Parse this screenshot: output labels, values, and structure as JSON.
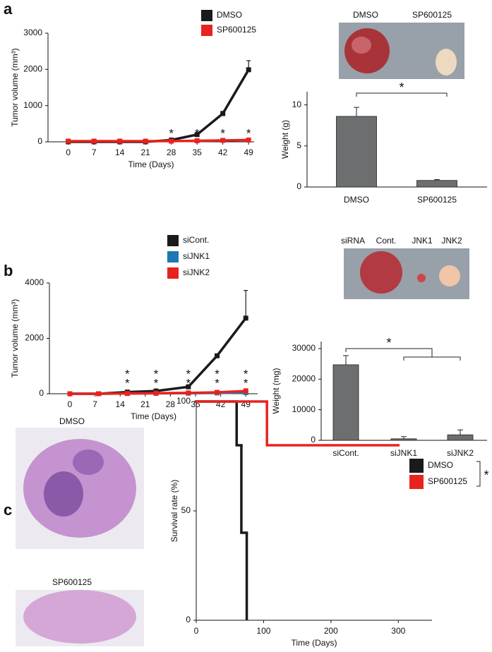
{
  "panel_labels": [
    "a",
    "b",
    "c"
  ],
  "photos": {
    "a": [
      "DMSO",
      "SP600125"
    ],
    "b": [
      "siRNA",
      "Cont.",
      "JNK1",
      "JNK2"
    ],
    "c": [
      "DMSO",
      "SP600125"
    ]
  },
  "chart_data": [
    {
      "type": "line",
      "x_label": "Time (Days)",
      "y_label": "Tumor volume (mm³)",
      "x": [
        0,
        7,
        14,
        21,
        28,
        35,
        42,
        49
      ],
      "xlim": [
        -5.5,
        50.5
      ],
      "xticks": [
        0,
        7,
        14,
        21,
        28,
        35,
        42,
        49
      ],
      "ylim": [
        0,
        3000
      ],
      "yticks": [
        0,
        1000,
        2000,
        3000
      ],
      "series": [
        {
          "name": "DMSO",
          "color": "#1a1a1a",
          "values": [
            0,
            0,
            0,
            0,
            50,
            200,
            780,
            1990
          ],
          "errors": [
            10,
            10,
            10,
            10,
            20,
            50,
            60,
            250
          ]
        },
        {
          "name": "SP600125",
          "color": "#e8231e",
          "values": [
            20,
            20,
            20,
            20,
            20,
            30,
            40,
            50
          ],
          "errors": [
            5,
            5,
            5,
            5,
            5,
            10,
            10,
            10
          ]
        }
      ],
      "annotations": [
        {
          "x": 28,
          "texts": [
            "*"
          ]
        },
        {
          "x": 35,
          "texts": [
            "*"
          ]
        },
        {
          "x": 42,
          "texts": [
            "*"
          ]
        },
        {
          "x": 49,
          "texts": [
            "*"
          ]
        }
      ]
    },
    {
      "type": "bar",
      "y_label": "Weight (g)",
      "categories": [
        "DMSO",
        "SP600125"
      ],
      "values": [
        8.6,
        0.8
      ],
      "errors": [
        1.1,
        0.1
      ],
      "color": "#6d6e70",
      "ylim": [
        0,
        11.6
      ],
      "yticks": [
        0,
        5,
        10
      ],
      "comparison": "*"
    },
    {
      "type": "line",
      "x_label": "Time (Days)",
      "y_label": "Tumor volume (mm³)",
      "x": [
        0,
        8,
        16,
        24,
        33,
        41,
        49
      ],
      "xlim": [
        -5.7,
        52.3
      ],
      "xticks": [
        0,
        7,
        14,
        21,
        28,
        35,
        42,
        49
      ],
      "ylim": [
        0,
        4000
      ],
      "yticks": [
        0,
        2000,
        4000
      ],
      "series": [
        {
          "name": "siCont.",
          "color": "#1a1a1a",
          "values": [
            0,
            0,
            60,
            100,
            250,
            1370,
            2730
          ],
          "errors": [
            10,
            10,
            20,
            30,
            60,
            60,
            1000
          ]
        },
        {
          "name": "siJNK1",
          "color": "#1f78b4",
          "values": [
            0,
            0,
            10,
            15,
            20,
            30,
            40
          ],
          "errors": [
            5,
            5,
            5,
            5,
            5,
            10,
            10
          ]
        },
        {
          "name": "siJNK2",
          "color": "#e8231e",
          "values": [
            0,
            0,
            10,
            20,
            30,
            50,
            100
          ],
          "errors": [
            5,
            5,
            5,
            5,
            10,
            20,
            80
          ]
        }
      ],
      "annotations": [
        {
          "x": 16,
          "texts": [
            "*",
            "*"
          ]
        },
        {
          "x": 24,
          "texts": [
            "*",
            "*"
          ]
        },
        {
          "x": 33,
          "texts": [
            "*",
            "*"
          ]
        },
        {
          "x": 41,
          "texts": [
            "*",
            "*"
          ]
        },
        {
          "x": 49,
          "texts": [
            "*",
            "*"
          ]
        }
      ]
    },
    {
      "type": "bar",
      "y_label": "Weight (mg)",
      "categories": [
        "siCont.",
        "siJNK1",
        "siJNK2"
      ],
      "values": [
        24700,
        500,
        1800
      ],
      "errors": [
        3000,
        700,
        1600
      ],
      "color": "#6d6e70",
      "ylim": [
        0,
        32300
      ],
      "yticks": [
        0,
        10000,
        20000,
        30000
      ],
      "comparison": "*"
    },
    {
      "type": "step",
      "x_label": "Time (Days)",
      "y_label": "Survival rate (%)",
      "xlim": [
        0,
        350
      ],
      "xticks": [
        0,
        100,
        200,
        300
      ],
      "ylim": [
        0,
        100
      ],
      "yticks": [
        0,
        50,
        100
      ],
      "series": [
        {
          "name": "DMSO",
          "color": "#1a1a1a",
          "x": [
            0,
            60,
            67,
            75
          ],
          "values": [
            100,
            80,
            40,
            0
          ]
        },
        {
          "name": "SP600125",
          "color": "#e8231e",
          "x": [
            0,
            105,
            300
          ],
          "values": [
            100,
            80,
            80
          ]
        }
      ],
      "legend_note": "*"
    }
  ]
}
